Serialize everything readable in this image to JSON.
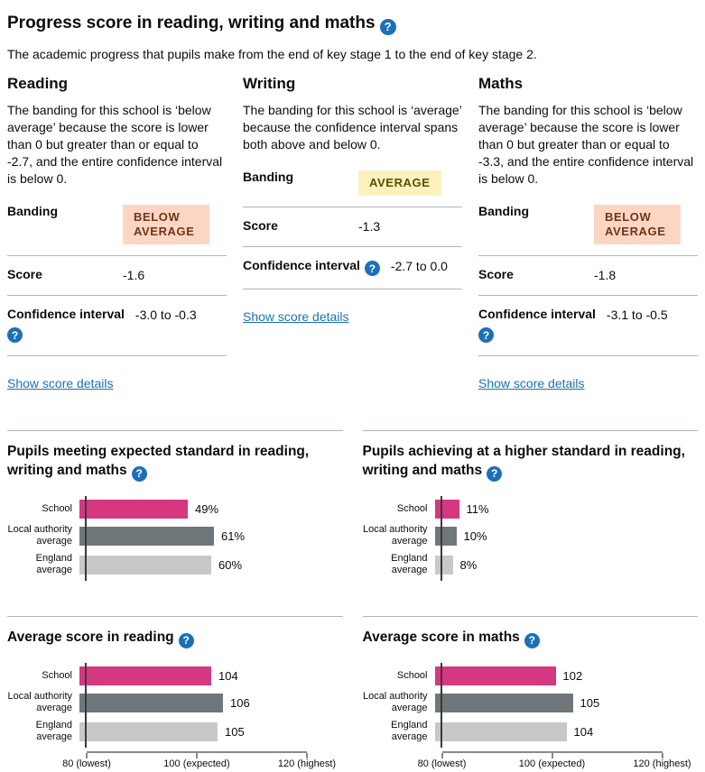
{
  "icons": {
    "help": "?"
  },
  "header": {
    "title": "Progress score in reading, writing and maths",
    "intro": "The academic progress that pupils make from the end of key stage 1 to the end of key stage 2."
  },
  "labels": {
    "banding": "Banding",
    "score": "Score",
    "confidence_interval": "Confidence interval",
    "details_link": "Show score details"
  },
  "badges": {
    "below_average": {
      "text": "BELOW AVERAGE",
      "bg": "#FCD6C3",
      "fg": "#6E3619"
    },
    "average": {
      "text": "AVERAGE",
      "bg": "#FCF1BD",
      "fg": "#594D00"
    }
  },
  "subjects": [
    {
      "name": "Reading",
      "description": "The banding for this school is ‘below average’ because the score is lower than 0 but greater than or equal to -2.7, and the entire confidence interval is below 0.",
      "banding": "below_average",
      "score": "-1.6",
      "confidence_interval": "-3.0 to -0.3"
    },
    {
      "name": "Writing",
      "description": "The banding for this school is ‘average’ because the confidence interval spans both above and below 0.",
      "banding": "average",
      "score": "-1.3",
      "confidence_interval": "-2.7 to 0.0"
    },
    {
      "name": "Maths",
      "description": "The banding for this school is ‘below average’ because the score is lower than 0 but greater than or equal to -3.3, and the entire confidence interval is below 0.",
      "banding": "below_average",
      "score": "-1.8",
      "confidence_interval": "-3.1 to -0.5"
    }
  ],
  "chart_colors": {
    "school": "#D53880",
    "local_authority": "#6F777B",
    "england": "#C6C8CA"
  },
  "chart_data": [
    {
      "type": "bar",
      "title": "Pupils meeting expected standard in reading, writing and maths",
      "categories": [
        "School",
        "Local authority average",
        "England average"
      ],
      "values": [
        49,
        61,
        60
      ],
      "value_labels": [
        "49%",
        "61%",
        "60%"
      ],
      "xlim": [
        0,
        100
      ],
      "axis_ticks": null
    },
    {
      "type": "bar",
      "title": "Pupils achieving at a higher standard in reading, writing and maths",
      "categories": [
        "School",
        "Local authority average",
        "England average"
      ],
      "values": [
        11,
        10,
        8
      ],
      "value_labels": [
        "11%",
        "10%",
        "8%"
      ],
      "xlim": [
        0,
        100
      ],
      "axis_ticks": null
    },
    {
      "type": "bar",
      "title": "Average score in reading",
      "categories": [
        "School",
        "Local authority average",
        "England average"
      ],
      "values": [
        104,
        106,
        105
      ],
      "value_labels": [
        "104",
        "106",
        "105"
      ],
      "xlim": [
        80,
        120
      ],
      "axis_ticks": [
        "80 (lowest)",
        "100 (expected)",
        "120 (highest)"
      ]
    },
    {
      "type": "bar",
      "title": "Average score in maths",
      "categories": [
        "School",
        "Local authority average",
        "England average"
      ],
      "values": [
        102,
        105,
        104
      ],
      "value_labels": [
        "102",
        "105",
        "104"
      ],
      "xlim": [
        80,
        120
      ],
      "axis_ticks": [
        "80 (lowest)",
        "100 (expected)",
        "120 (highest)"
      ]
    }
  ]
}
